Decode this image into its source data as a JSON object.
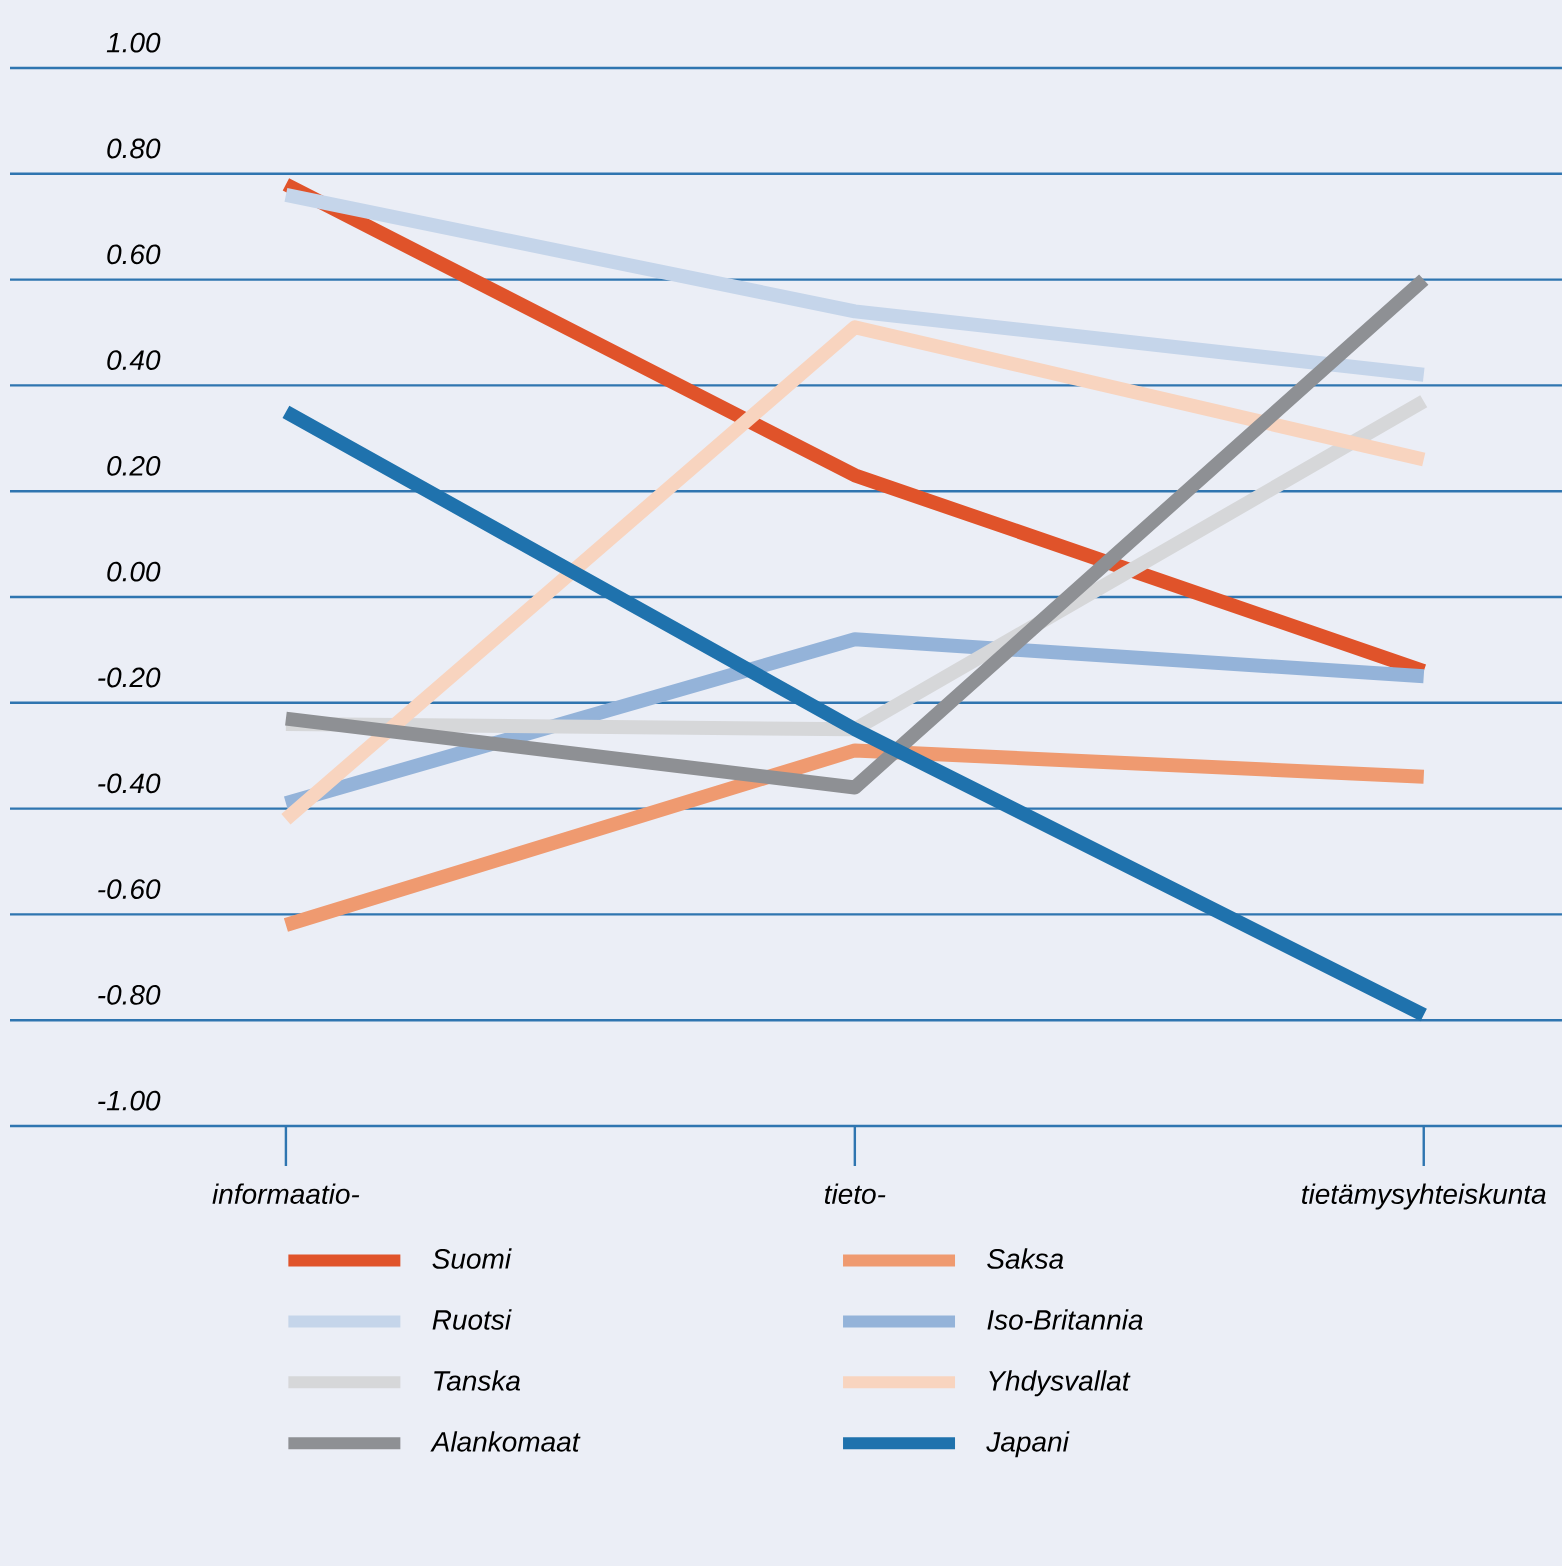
{
  "chart_data": {
    "type": "line",
    "categories": [
      "informaatio-",
      "tieto-",
      "tietämysyhteiskunta"
    ],
    "series": [
      {
        "name": "Suomi",
        "color": "#e0532a",
        "values": [
          0.78,
          0.23,
          -0.14
        ]
      },
      {
        "name": "Saksa",
        "color": "#ef9a70",
        "values": [
          -0.62,
          -0.29,
          -0.34
        ]
      },
      {
        "name": "Ruotsi",
        "color": "#c5d5ea",
        "values": [
          0.76,
          0.54,
          0.42
        ]
      },
      {
        "name": "Iso-Britannia",
        "color": "#94b3d9",
        "values": [
          -0.39,
          -0.08,
          -0.15
        ]
      },
      {
        "name": "Tanska",
        "color": "#d6d7d9",
        "values": [
          -0.24,
          -0.25,
          0.37
        ]
      },
      {
        "name": "Yhdysvallat",
        "color": "#f8d4bf",
        "values": [
          -0.42,
          0.51,
          0.26
        ]
      },
      {
        "name": "Alankomaat",
        "color": "#8e9094",
        "values": [
          -0.23,
          -0.36,
          0.6
        ]
      },
      {
        "name": "Japani",
        "color": "#1f72ad",
        "values": [
          0.35,
          -0.25,
          -0.79
        ]
      }
    ],
    "ylim": [
      -1,
      1
    ],
    "yticks": [
      {
        "value": 1,
        "label": "1.00"
      },
      {
        "value": 0.8,
        "label": "0.80"
      },
      {
        "value": 0.6,
        "label": "0.60"
      },
      {
        "value": 0.4,
        "label": "0.40"
      },
      {
        "value": 0.2,
        "label": "0.20"
      },
      {
        "value": 0,
        "label": "0.00"
      },
      {
        "value": -0.2,
        "label": "-0.20"
      },
      {
        "value": -0.4,
        "label": "-0.40"
      },
      {
        "value": -0.6,
        "label": "-0.60"
      },
      {
        "value": -0.8,
        "label": "-0.80"
      },
      {
        "value": -1,
        "label": "-1.00"
      }
    ],
    "grid": "y",
    "legend": "bottom",
    "line_style": "solid"
  }
}
